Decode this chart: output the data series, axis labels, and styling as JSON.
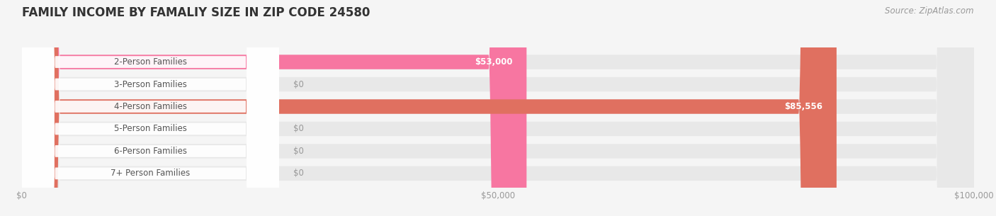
{
  "title": "FAMILY INCOME BY FAMALIY SIZE IN ZIP CODE 24580",
  "source": "Source: ZipAtlas.com",
  "categories": [
    "2-Person Families",
    "3-Person Families",
    "4-Person Families",
    "5-Person Families",
    "6-Person Families",
    "7+ Person Families"
  ],
  "values": [
    53000,
    0,
    85556,
    0,
    0,
    0
  ],
  "bar_colors": [
    "#f776a1",
    "#f7c89b",
    "#e07060",
    "#a8bfe0",
    "#c4a8d8",
    "#7ecece"
  ],
  "value_labels": [
    "$53,000",
    "$0",
    "$85,556",
    "$0",
    "$0",
    "$0"
  ],
  "xlim": [
    0,
    100000
  ],
  "xticks": [
    0,
    50000,
    100000
  ],
  "xtick_labels": [
    "$0",
    "$50,000",
    "$100,000"
  ],
  "background_color": "#f5f5f5",
  "bar_bg_color": "#e8e8e8",
  "title_fontsize": 12,
  "source_fontsize": 8.5,
  "label_fontsize": 8.5,
  "value_fontsize": 8.5
}
